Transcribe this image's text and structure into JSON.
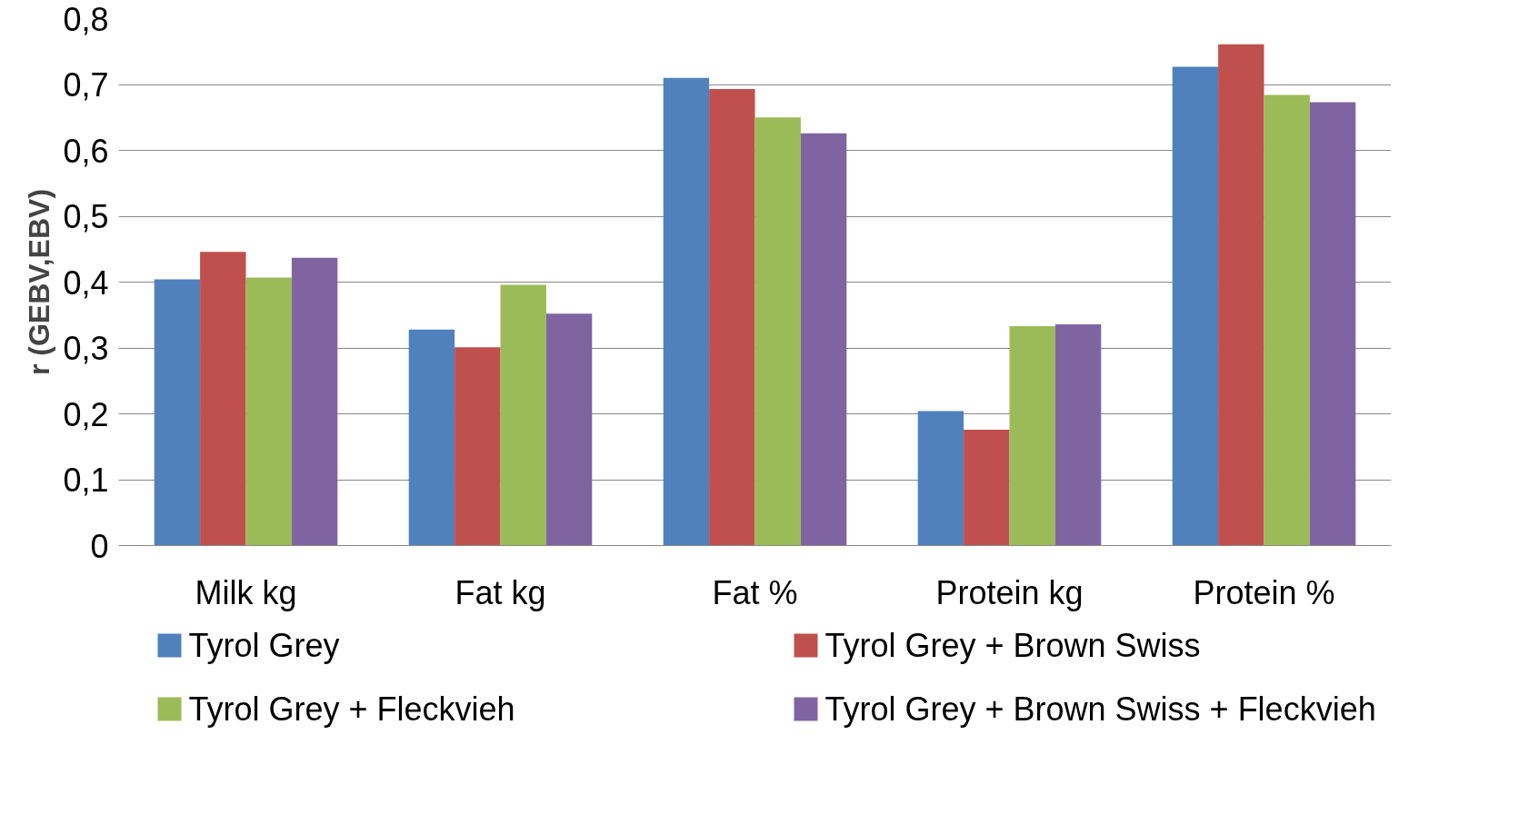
{
  "chart_data": {
    "type": "bar",
    "ylabel": "r (GEBV,EBV)",
    "categories": [
      "Milk kg",
      "Fat kg",
      "Fat %",
      "Protein kg",
      "Protein %"
    ],
    "series": [
      {
        "name": "Tyrol Grey",
        "color": "#4f81bd",
        "values": [
          0.404,
          0.328,
          0.71,
          0.204,
          0.727
        ]
      },
      {
        "name": "Tyrol Grey + Brown Swiss",
        "color": "#c0504d",
        "values": [
          0.446,
          0.301,
          0.693,
          0.176,
          0.761
        ]
      },
      {
        "name": "Tyrol Grey + Fleckvieh",
        "color": "#9bbb59",
        "values": [
          0.407,
          0.396,
          0.65,
          0.333,
          0.684
        ]
      },
      {
        "name": "Tyrol Grey + Brown Swiss + Fleckvieh",
        "color": "#8064a2",
        "values": [
          0.437,
          0.352,
          0.626,
          0.336,
          0.673
        ]
      }
    ],
    "ylim": [
      0,
      0.8
    ],
    "yticks": [
      0,
      {
        "value": 0.1,
        "label": "0,1"
      },
      {
        "value": 0.2,
        "label": "0,2"
      },
      {
        "value": 0.3,
        "label": "0,3"
      },
      {
        "value": 0.4,
        "label": "0,4"
      },
      {
        "value": 0.5,
        "label": "0,5"
      },
      {
        "value": 0.6,
        "label": "0,6"
      },
      {
        "value": 0.7,
        "label": "0,7"
      },
      {
        "value": 0.8,
        "label": "0,8"
      }
    ],
    "grid": "y",
    "legend": "bottom"
  }
}
